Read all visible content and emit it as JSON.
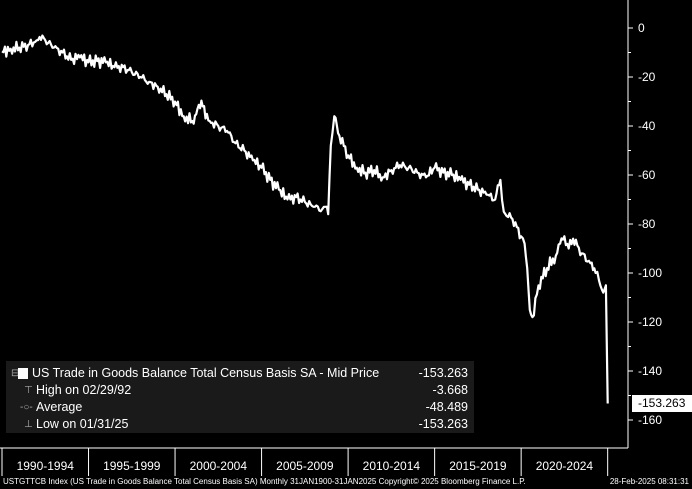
{
  "chart_data": {
    "type": "line",
    "title": "",
    "xlabel": "",
    "ylabel": "",
    "ylim": [
      -165,
      8
    ],
    "y_ticks": [
      0,
      -20,
      -40,
      -60,
      -80,
      -100,
      -120,
      -140,
      -160
    ],
    "y_tick_labels": [
      "0",
      "-20",
      "-40",
      "-60",
      "-80",
      "-100",
      "-120",
      "-140",
      "-160"
    ],
    "x_range": [
      1990.0,
      2025.25
    ],
    "x_tick_labels": [
      "1990-1994",
      "1995-1999",
      "2000-2004",
      "2005-2009",
      "2010-2014",
      "2015-2019",
      "2020-2024"
    ],
    "grid": false,
    "series": [
      {
        "name": "US Trade in Goods Balance Total Census Basis SA - Mid Price",
        "color": "#ffffff",
        "x": [
          1990.0,
          1990.5,
          1991.0,
          1991.5,
          1992.0,
          1992.17,
          1992.5,
          1993.0,
          1993.5,
          1994.0,
          1994.5,
          1995.0,
          1995.5,
          1996.0,
          1996.5,
          1997.0,
          1997.5,
          1998.0,
          1998.5,
          1999.0,
          1999.5,
          2000.0,
          2000.5,
          2001.0,
          2001.3,
          2001.6,
          2002.0,
          2002.5,
          2003.0,
          2003.5,
          2004.0,
          2004.5,
          2005.0,
          2005.5,
          2006.0,
          2006.5,
          2007.0,
          2007.5,
          2008.0,
          2008.5,
          2008.7,
          2008.85,
          2009.0,
          2009.2,
          2009.5,
          2010.0,
          2010.5,
          2011.0,
          2011.5,
          2012.0,
          2012.5,
          2013.0,
          2013.5,
          2014.0,
          2014.5,
          2015.0,
          2015.5,
          2016.0,
          2016.5,
          2017.0,
          2017.5,
          2018.0,
          2018.5,
          2018.8,
          2019.0,
          2019.5,
          2020.0,
          2020.2,
          2020.35,
          2020.5,
          2020.65,
          2021.0,
          2021.5,
          2022.0,
          2022.25,
          2022.5,
          2022.75,
          2023.0,
          2023.5,
          2024.0,
          2024.3,
          2024.5,
          2024.75,
          2024.9,
          2025.0
        ],
        "values": [
          -9.5,
          -8.5,
          -8,
          -7,
          -5,
          -3.668,
          -5,
          -8,
          -10,
          -13,
          -12,
          -14,
          -13.5,
          -14,
          -16,
          -16,
          -18,
          -20,
          -22,
          -24,
          -27,
          -30,
          -36,
          -38,
          -33,
          -32,
          -38,
          -40,
          -42,
          -47,
          -50,
          -54,
          -57,
          -62,
          -66,
          -70,
          -69,
          -71,
          -73,
          -74,
          -73,
          -76,
          -48,
          -36,
          -44,
          -52,
          -57,
          -59,
          -58,
          -61,
          -58,
          -56,
          -57,
          -59,
          -61,
          -57,
          -59,
          -60,
          -62,
          -64,
          -66,
          -68,
          -70,
          -62,
          -75,
          -78,
          -85,
          -88,
          -98,
          -115,
          -118,
          -105,
          -98,
          -93,
          -88,
          -85,
          -90,
          -86,
          -92,
          -96,
          -100,
          -103,
          -108,
          -105,
          -153.263
        ]
      }
    ],
    "legend": {
      "placement": "bottom-left",
      "title_row": {
        "label": "US Trade in Goods Balance Total Census Basis SA - Mid Price",
        "value": "-153.263"
      },
      "high": {
        "label": "High on 02/29/92",
        "value": "-3.668"
      },
      "average": {
        "label": "Average",
        "value": "-48.489"
      },
      "low": {
        "label": "Low on 01/31/25",
        "value": "-153.263"
      }
    },
    "last_value_label": "-153.263"
  },
  "footer": {
    "left": "USTGTTCB Index (US Trade in Goods Balance Total Census Basis SA)  Monthly 31JAN1900-31JAN2025  Copyright© 2025 Bloomberg Finance L.P.",
    "right": "28-Feb-2025 08:31:31"
  },
  "colors": {
    "background": "#000000",
    "line": "#ffffff",
    "axis": "#ffffff",
    "legend_bg": "#1a1a1a"
  }
}
